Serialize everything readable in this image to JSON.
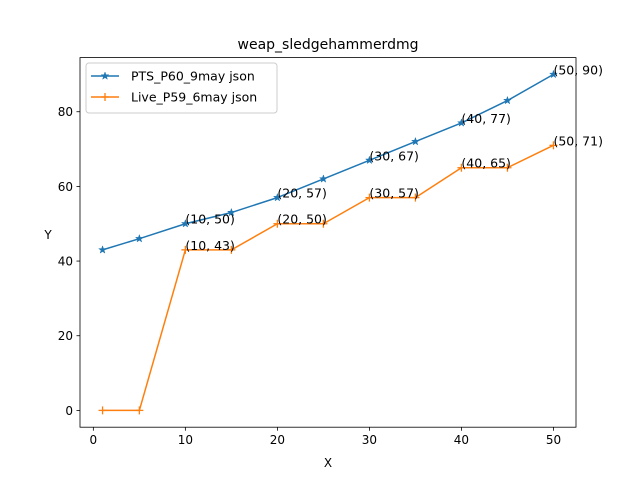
{
  "chart_data": {
    "type": "line",
    "title": "weap_sledgehammerdmg",
    "xlabel": "X",
    "ylabel": "Y",
    "xlim": [
      -1.45,
      52.45
    ],
    "ylim": [
      -4.5,
      94.5
    ],
    "xticks": [
      0,
      10,
      20,
      30,
      40,
      50
    ],
    "yticks": [
      0,
      20,
      40,
      60,
      80
    ],
    "grid": false,
    "legend_position": "upper-left",
    "series": [
      {
        "name": "PTS_P60_9may json",
        "color": "#1f77b4",
        "marker": "star",
        "x": [
          1,
          5,
          10,
          15,
          20,
          25,
          30,
          35,
          40,
          45,
          50
        ],
        "y": [
          43,
          46,
          50,
          53,
          57,
          62,
          67,
          72,
          77,
          83,
          90
        ]
      },
      {
        "name": "Live_P59_6may json",
        "color": "#ff7f0e",
        "marker": "plus",
        "x": [
          1,
          5,
          10,
          15,
          20,
          25,
          30,
          35,
          40,
          45,
          50
        ],
        "y": [
          0,
          0,
          43,
          43,
          50,
          50,
          57,
          57,
          65,
          65,
          71
        ]
      }
    ],
    "annotations": [
      {
        "text": "(10, 50)",
        "x": 10,
        "y": 50
      },
      {
        "text": "(20, 57)",
        "x": 20,
        "y": 57
      },
      {
        "text": "(30, 67)",
        "x": 30,
        "y": 67
      },
      {
        "text": "(40, 77)",
        "x": 40,
        "y": 77
      },
      {
        "text": "(50, 90)",
        "x": 50,
        "y": 90
      },
      {
        "text": "(10, 43)",
        "x": 10,
        "y": 43
      },
      {
        "text": "(20, 50)",
        "x": 20,
        "y": 50
      },
      {
        "text": "(30, 57)",
        "x": 30,
        "y": 57
      },
      {
        "text": "(40, 65)",
        "x": 40,
        "y": 65
      },
      {
        "text": "(50, 71)",
        "x": 50,
        "y": 71
      }
    ]
  }
}
